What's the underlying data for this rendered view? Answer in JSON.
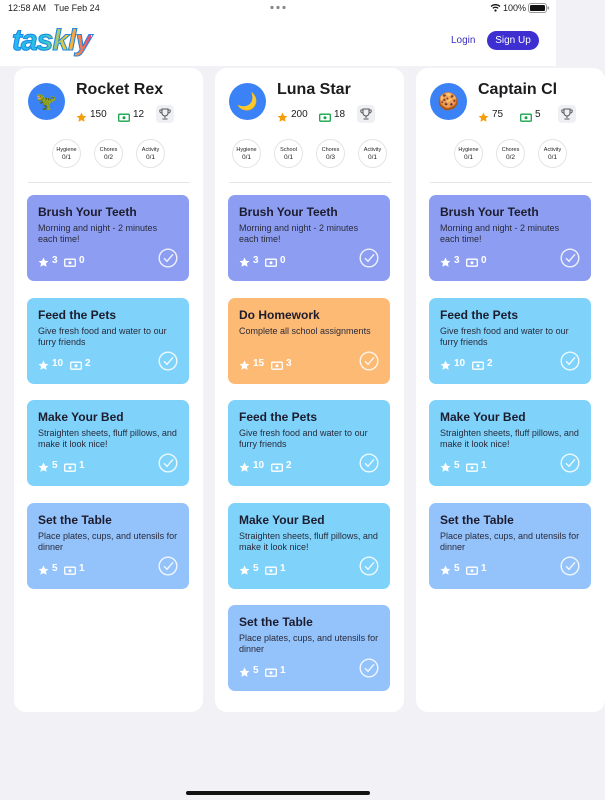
{
  "status": {
    "time": "12:58 AM",
    "date": "Tue Feb 24",
    "battery": "100%"
  },
  "header": {
    "logo": "taskly",
    "login": "Login",
    "signup": "Sign Up"
  },
  "kids": [
    {
      "name": "Rocket Rex",
      "avatar": "🦖",
      "stars": "150",
      "cash": "12",
      "categories": [
        {
          "label": "Hygiene",
          "progress": "0/1"
        },
        {
          "label": "Chores",
          "progress": "0/2"
        },
        {
          "label": "Activity",
          "progress": "0/1"
        }
      ],
      "tasks": [
        {
          "title": "Brush Your Teeth",
          "description": "Morning and night - 2 minutes each time!",
          "stars": "3",
          "cash": "0",
          "color": "#8d9ef2"
        },
        {
          "title": "Feed the Pets",
          "description": "Give fresh food and water to our furry friends",
          "stars": "10",
          "cash": "2",
          "color": "#7fd3fb"
        },
        {
          "title": "Make Your Bed",
          "description": "Straighten sheets, fluff pillows, and make it look nice!",
          "stars": "5",
          "cash": "1",
          "color": "#7fd3fb"
        },
        {
          "title": "Set the Table",
          "description": "Place plates, cups, and utensils for dinner",
          "stars": "5",
          "cash": "1",
          "color": "#94c3fb"
        }
      ]
    },
    {
      "name": "Luna Star",
      "avatar": "🌙",
      "stars": "200",
      "cash": "18",
      "categories": [
        {
          "label": "Hygiene",
          "progress": "0/1"
        },
        {
          "label": "School",
          "progress": "0/1"
        },
        {
          "label": "Chores",
          "progress": "0/3"
        },
        {
          "label": "Activity",
          "progress": "0/1"
        }
      ],
      "tasks": [
        {
          "title": "Brush Your Teeth",
          "description": "Morning and night - 2 minutes each time!",
          "stars": "3",
          "cash": "0",
          "color": "#8d9ef2"
        },
        {
          "title": "Do Homework",
          "description": "Complete all school assignments",
          "stars": "15",
          "cash": "3",
          "color": "#fdba74"
        },
        {
          "title": "Feed the Pets",
          "description": "Give fresh food and water to our furry friends",
          "stars": "10",
          "cash": "2",
          "color": "#7fd3fb"
        },
        {
          "title": "Make Your Bed",
          "description": "Straighten sheets, fluff pillows, and make it look nice!",
          "stars": "5",
          "cash": "1",
          "color": "#7fd3fb"
        },
        {
          "title": "Set the Table",
          "description": "Place plates, cups, and utensils for dinner",
          "stars": "5",
          "cash": "1",
          "color": "#94c3fb"
        }
      ]
    },
    {
      "name": "Captain Cl",
      "avatar": "🍪",
      "stars": "75",
      "cash": "5",
      "categories": [
        {
          "label": "Hygiene",
          "progress": "0/1"
        },
        {
          "label": "Chores",
          "progress": "0/2"
        },
        {
          "label": "Activity",
          "progress": "0/1"
        }
      ],
      "tasks": [
        {
          "title": "Brush Your Teeth",
          "description": "Morning and night - 2 minutes each time!",
          "stars": "3",
          "cash": "0",
          "color": "#8d9ef2"
        },
        {
          "title": "Feed the Pets",
          "description": "Give fresh food and water to our furry friends",
          "stars": "10",
          "cash": "2",
          "color": "#7fd3fb"
        },
        {
          "title": "Make Your Bed",
          "description": "Straighten sheets, fluff pillows, and make it look nice!",
          "stars": "5",
          "cash": "1",
          "color": "#7fd3fb"
        },
        {
          "title": "Set the Table",
          "description": "Place plates, cups, and utensils for dinner",
          "stars": "5",
          "cash": "1",
          "color": "#94c3fb"
        }
      ]
    }
  ]
}
